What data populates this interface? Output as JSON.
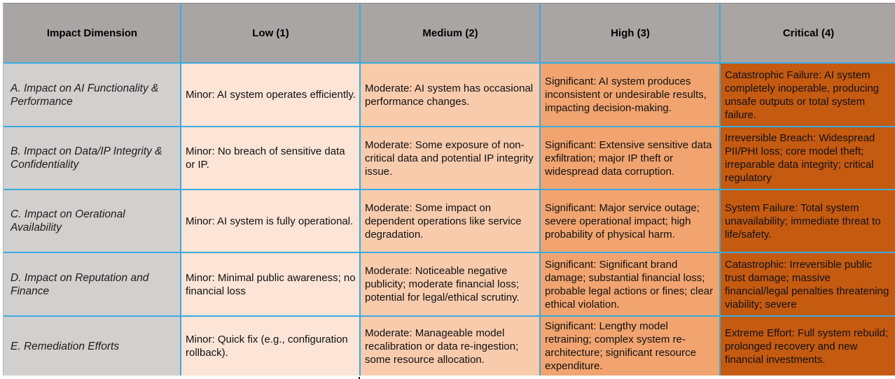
{
  "colors": {
    "border": "#3aabdf",
    "headerBg": "#aaa5a5",
    "dimBg": "#d2cfcf",
    "lowBg": "#fce4d6",
    "mediumBg": "#f8cbad",
    "highBg": "#f1a46f",
    "criticalBg": "#c55a11"
  },
  "table": {
    "columns": {
      "dimension": "Impact Dimension",
      "low": "Low (1)",
      "medium": "Medium (2)",
      "high": "High (3)",
      "critical": "Critical (4)"
    },
    "rows": [
      {
        "dimension": "A. Impact on AI Functionality & Performance",
        "low": "Minor: AI system operates efficiently.",
        "medium": "Moderate: AI system has occasional performance changes.",
        "high": "Significant: AI system produces inconsistent or undesirable results, impacting decision-making.",
        "critical": "Catastrophic Failure: AI system completely inoperable, producing unsafe outputs or total system failure."
      },
      {
        "dimension": "B. Impact on Data/IP Integrity & Confidentiality",
        "low": "Minor: No breach of sensitive data or IP.",
        "medium": "Moderate: Some exposure of non-critical data and potential IP integrity issue.",
        "high": "Significant: Extensive sensitive data exfiltration; major IP theft or widespread data corruption.",
        "critical": "Irreversible Breach: Widespread PII/PHI loss; core model theft; irreparable data integrity; critical regulatory"
      },
      {
        "dimension": "C. Impact on Oerational Availability",
        "low": "Minor: AI system is fully operational.",
        "medium": "Moderate: Some impact on dependent operations like service degradation.",
        "high": "Significant: Major service outage; severe operational impact; high probability of physical harm.",
        "critical": "System Failure: Total system unavailability; immediate threat to life/safety."
      },
      {
        "dimension": "D. Impact on Reputation and Finance",
        "low": "Minor: Minimal public awareness; no financial loss",
        "medium": "Moderate: Noticeable negative publicity; moderate financial loss; potential for legal/ethical scrutiny.",
        "high": "Significant: Significant brand damage; substantial financial loss; probable legal actions or fines; clear ethical violation.",
        "critical": "Catastrophic: Irreversible public trust damage; massive financial/legal penalties threatening viability; severe"
      },
      {
        "dimension": "E. Remediation Efforts",
        "low": "Minor: Quick fix (e.g., configuration rollback).",
        "medium": "Moderate: Manageable model recalibration or data re-ingestion; some resource allocation.",
        "high": "Significant: Lengthy model retraining; complex system re-architecture; significant resource expenditure.",
        "critical": "Extreme Effort: Full system rebuild; prolonged recovery and new financial investments."
      }
    ]
  }
}
